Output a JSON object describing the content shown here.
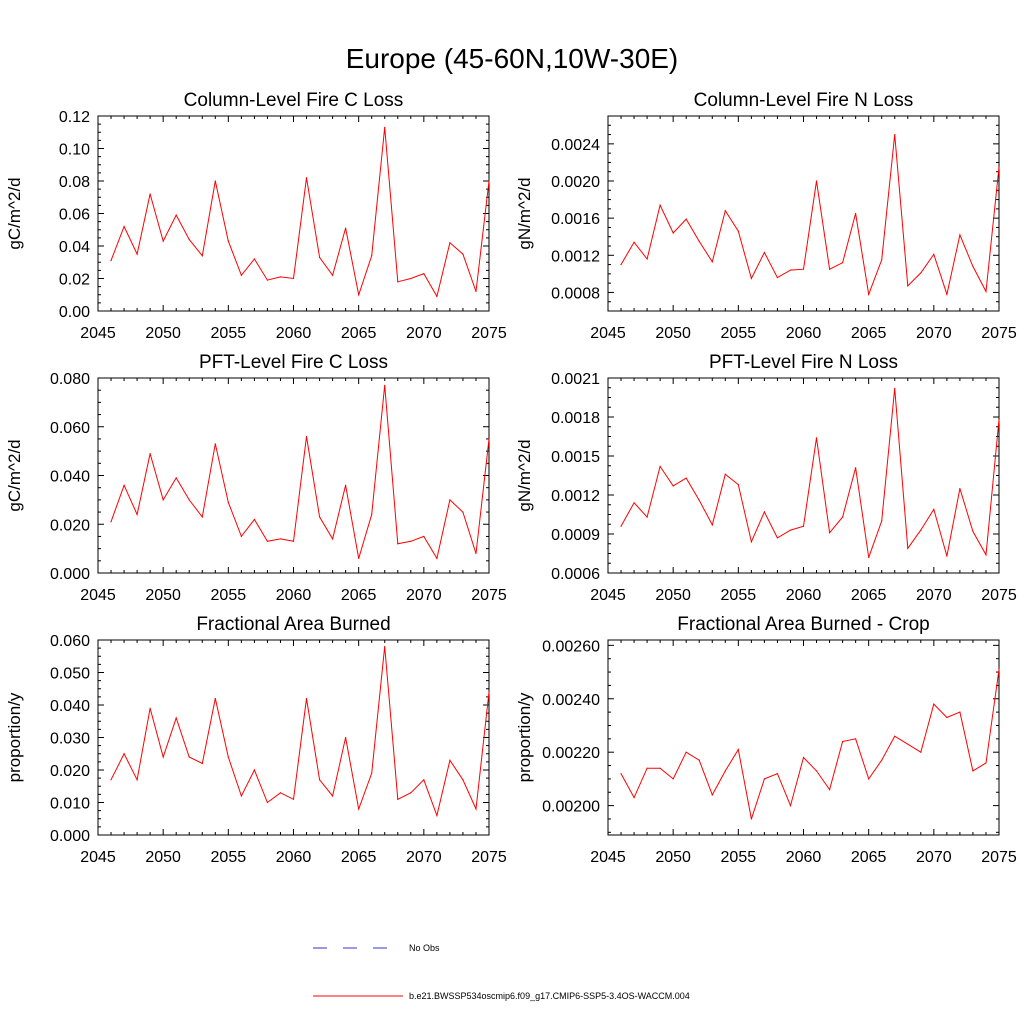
{
  "figure_title": "Europe (45-60N,10W-30E)",
  "legend": {
    "obs_label": "No Obs",
    "obs_color": "#3333cc",
    "model_label": "b.e21.BWSSP534oscmip6.f09_g17.CMIP6-SSP5-3.4OS-WACCM.004",
    "model_color": "#ff0000"
  },
  "chart_data": [
    {
      "type": "line",
      "title": "Column-Level Fire C Loss",
      "xlabel": "",
      "ylabel": "gC/m^2/d",
      "xlim": [
        2045,
        2075
      ],
      "ylim": [
        0.0,
        0.12
      ],
      "xticks": [
        2045,
        2050,
        2055,
        2060,
        2065,
        2070,
        2075
      ],
      "yticks": [
        0.0,
        0.02,
        0.04,
        0.06,
        0.08,
        0.1,
        0.12
      ],
      "ytick_labels": [
        "0.00",
        "0.02",
        "0.04",
        "0.06",
        "0.08",
        "0.10",
        "0.12"
      ],
      "x": [
        2046,
        2047,
        2048,
        2049,
        2050,
        2051,
        2052,
        2053,
        2054,
        2055,
        2056,
        2057,
        2058,
        2059,
        2060,
        2061,
        2062,
        2063,
        2064,
        2065,
        2066,
        2067,
        2068,
        2069,
        2070,
        2071,
        2072,
        2073,
        2074,
        2075
      ],
      "series": [
        {
          "name": "b.e21.BWSSP534oscmip6.f09_g17.CMIP6-SSP5-3.4OS-WACCM.004",
          "values": [
            0.031,
            0.052,
            0.035,
            0.072,
            0.043,
            0.059,
            0.044,
            0.034,
            0.08,
            0.043,
            0.022,
            0.032,
            0.019,
            0.021,
            0.02,
            0.082,
            0.033,
            0.022,
            0.051,
            0.01,
            0.034,
            0.113,
            0.018,
            0.02,
            0.023,
            0.009,
            0.042,
            0.035,
            0.012,
            0.08
          ]
        }
      ]
    },
    {
      "type": "line",
      "title": "Column-Level Fire N Loss",
      "xlabel": "",
      "ylabel": "gN/m^2/d",
      "xlim": [
        2045,
        2075
      ],
      "ylim": [
        0.0006,
        0.0027
      ],
      "xticks": [
        2045,
        2050,
        2055,
        2060,
        2065,
        2070,
        2075
      ],
      "yticks": [
        0.0008,
        0.0012,
        0.0016,
        0.002,
        0.0024
      ],
      "ytick_labels": [
        "0.0008",
        "0.0012",
        "0.0016",
        "0.0020",
        "0.0024"
      ],
      "x": [
        2046,
        2047,
        2048,
        2049,
        2050,
        2051,
        2052,
        2053,
        2054,
        2055,
        2056,
        2057,
        2058,
        2059,
        2060,
        2061,
        2062,
        2063,
        2064,
        2065,
        2066,
        2067,
        2068,
        2069,
        2070,
        2071,
        2072,
        2073,
        2074,
        2075
      ],
      "series": [
        {
          "name": "b.e21.BWSSP534oscmip6.f09_g17.CMIP6-SSP5-3.4OS-WACCM.004",
          "values": [
            0.0011,
            0.00134,
            0.00116,
            0.00174,
            0.00144,
            0.00159,
            0.00135,
            0.00113,
            0.00168,
            0.00146,
            0.00095,
            0.00123,
            0.00096,
            0.00104,
            0.00105,
            0.002,
            0.00105,
            0.00112,
            0.00165,
            0.00078,
            0.00115,
            0.0025,
            0.00087,
            0.00101,
            0.00121,
            0.00078,
            0.00142,
            0.00108,
            0.00081,
            0.00215
          ]
        }
      ]
    },
    {
      "type": "line",
      "title": "PFT-Level Fire C Loss",
      "xlabel": "",
      "ylabel": "gC/m^2/d",
      "xlim": [
        2045,
        2075
      ],
      "ylim": [
        0.0,
        0.08
      ],
      "xticks": [
        2045,
        2050,
        2055,
        2060,
        2065,
        2070,
        2075
      ],
      "yticks": [
        0.0,
        0.02,
        0.04,
        0.06,
        0.08
      ],
      "ytick_labels": [
        "0.000",
        "0.020",
        "0.040",
        "0.060",
        "0.080"
      ],
      "x": [
        2046,
        2047,
        2048,
        2049,
        2050,
        2051,
        2052,
        2053,
        2054,
        2055,
        2056,
        2057,
        2058,
        2059,
        2060,
        2061,
        2062,
        2063,
        2064,
        2065,
        2066,
        2067,
        2068,
        2069,
        2070,
        2071,
        2072,
        2073,
        2074,
        2075
      ],
      "series": [
        {
          "name": "b.e21.BWSSP534oscmip6.f09_g17.CMIP6-SSP5-3.4OS-WACCM.004",
          "values": [
            0.021,
            0.036,
            0.024,
            0.049,
            0.03,
            0.039,
            0.03,
            0.023,
            0.053,
            0.029,
            0.015,
            0.022,
            0.013,
            0.014,
            0.013,
            0.056,
            0.023,
            0.014,
            0.036,
            0.006,
            0.024,
            0.077,
            0.012,
            0.013,
            0.015,
            0.006,
            0.03,
            0.025,
            0.008,
            0.055
          ]
        }
      ]
    },
    {
      "type": "line",
      "title": "PFT-Level Fire N Loss",
      "xlabel": "",
      "ylabel": "gN/m^2/d",
      "xlim": [
        2045,
        2075
      ],
      "ylim": [
        0.0006,
        0.0021
      ],
      "xticks": [
        2045,
        2050,
        2055,
        2060,
        2065,
        2070,
        2075
      ],
      "yticks": [
        0.0006,
        0.0009,
        0.0012,
        0.0015,
        0.0018,
        0.0021
      ],
      "ytick_labels": [
        "0.0006",
        "0.0009",
        "0.0012",
        "0.0015",
        "0.0018",
        "0.0021"
      ],
      "x": [
        2046,
        2047,
        2048,
        2049,
        2050,
        2051,
        2052,
        2053,
        2054,
        2055,
        2056,
        2057,
        2058,
        2059,
        2060,
        2061,
        2062,
        2063,
        2064,
        2065,
        2066,
        2067,
        2068,
        2069,
        2070,
        2071,
        2072,
        2073,
        2074,
        2075
      ],
      "series": [
        {
          "name": "b.e21.BWSSP534oscmip6.f09_g17.CMIP6-SSP5-3.4OS-WACCM.004",
          "values": [
            0.00096,
            0.00114,
            0.00103,
            0.00142,
            0.00127,
            0.00133,
            0.00116,
            0.00097,
            0.00136,
            0.00128,
            0.00084,
            0.00107,
            0.00087,
            0.00093,
            0.00096,
            0.00164,
            0.00091,
            0.00103,
            0.00141,
            0.00072,
            0.001,
            0.00202,
            0.00079,
            0.00093,
            0.00109,
            0.00073,
            0.00125,
            0.00092,
            0.00074,
            0.00178
          ]
        }
      ]
    },
    {
      "type": "line",
      "title": "Fractional Area Burned",
      "xlabel": "",
      "ylabel": "proportion/y",
      "xlim": [
        2045,
        2075
      ],
      "ylim": [
        0.0,
        0.06
      ],
      "xticks": [
        2045,
        2050,
        2055,
        2060,
        2065,
        2070,
        2075
      ],
      "yticks": [
        0.0,
        0.01,
        0.02,
        0.03,
        0.04,
        0.05,
        0.06
      ],
      "ytick_labels": [
        "0.000",
        "0.010",
        "0.020",
        "0.030",
        "0.040",
        "0.050",
        "0.060"
      ],
      "x": [
        2046,
        2047,
        2048,
        2049,
        2050,
        2051,
        2052,
        2053,
        2054,
        2055,
        2056,
        2057,
        2058,
        2059,
        2060,
        2061,
        2062,
        2063,
        2064,
        2065,
        2066,
        2067,
        2068,
        2069,
        2070,
        2071,
        2072,
        2073,
        2074,
        2075
      ],
      "series": [
        {
          "name": "b.e21.BWSSP534oscmip6.f09_g17.CMIP6-SSP5-3.4OS-WACCM.004",
          "values": [
            0.017,
            0.025,
            0.017,
            0.039,
            0.024,
            0.036,
            0.024,
            0.022,
            0.042,
            0.024,
            0.012,
            0.02,
            0.01,
            0.013,
            0.011,
            0.042,
            0.017,
            0.012,
            0.03,
            0.008,
            0.019,
            0.058,
            0.011,
            0.013,
            0.017,
            0.006,
            0.023,
            0.017,
            0.008,
            0.044
          ]
        }
      ]
    },
    {
      "type": "line",
      "title": "Fractional Area Burned - Crop",
      "xlabel": "",
      "ylabel": "proportion/y",
      "xlim": [
        2045,
        2075
      ],
      "ylim": [
        0.00189,
        0.00262
      ],
      "xticks": [
        2045,
        2050,
        2055,
        2060,
        2065,
        2070,
        2075
      ],
      "yticks": [
        0.002,
        0.0022,
        0.0024,
        0.0026
      ],
      "ytick_labels": [
        "0.00200",
        "0.00220",
        "0.00240",
        "0.00260"
      ],
      "x": [
        2046,
        2047,
        2048,
        2049,
        2050,
        2051,
        2052,
        2053,
        2054,
        2055,
        2056,
        2057,
        2058,
        2059,
        2060,
        2061,
        2062,
        2063,
        2064,
        2065,
        2066,
        2067,
        2068,
        2069,
        2070,
        2071,
        2072,
        2073,
        2074,
        2075
      ],
      "series": [
        {
          "name": "b.e21.BWSSP534oscmip6.f09_g17.CMIP6-SSP5-3.4OS-WACCM.004",
          "values": [
            0.00212,
            0.00203,
            0.00214,
            0.00214,
            0.0021,
            0.0022,
            0.00217,
            0.00204,
            0.00213,
            0.00221,
            0.00195,
            0.0021,
            0.00212,
            0.002,
            0.00218,
            0.00213,
            0.00206,
            0.00224,
            0.00225,
            0.0021,
            0.00217,
            0.00226,
            0.00223,
            0.0022,
            0.00238,
            0.00233,
            0.00235,
            0.00213,
            0.00216,
            0.00251
          ]
        }
      ]
    }
  ]
}
